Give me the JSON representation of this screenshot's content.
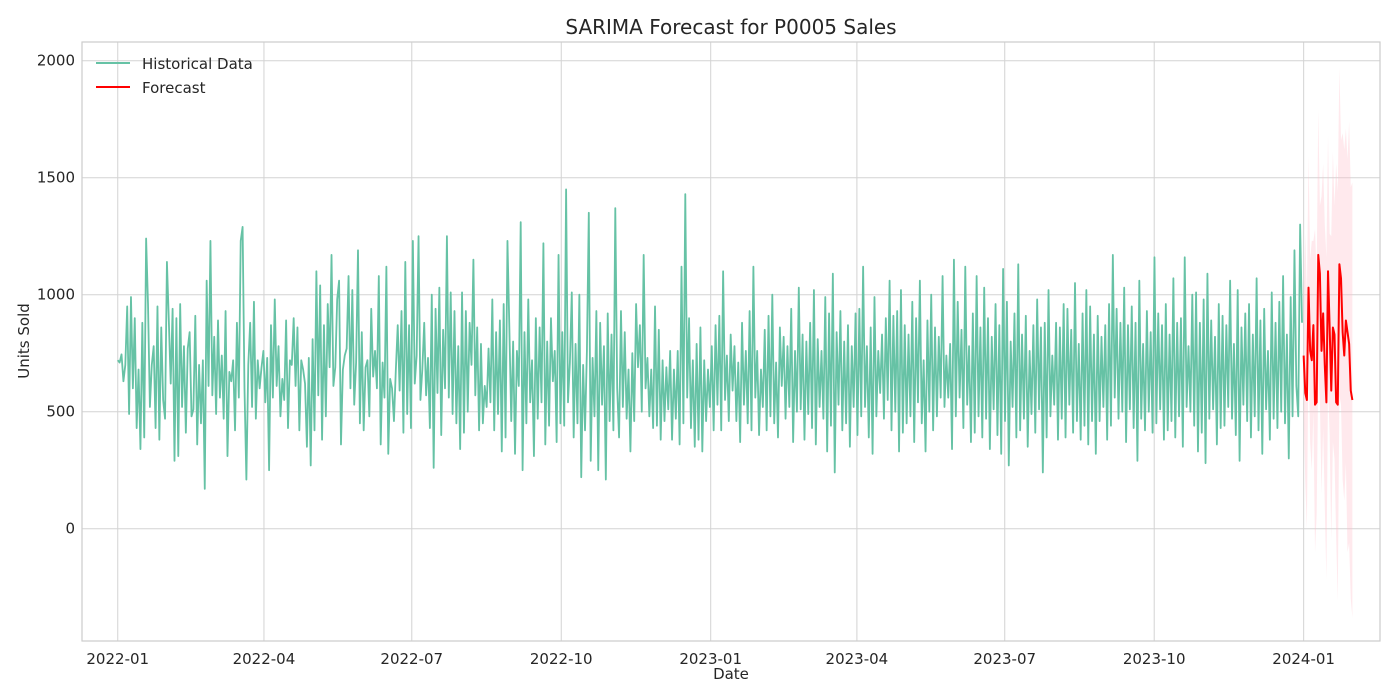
{
  "chart_data": {
    "type": "line",
    "title": "SARIMA Forecast for P0005 Sales",
    "xlabel": "Date",
    "ylabel": "Units Sold",
    "xlim": [
      "2021-12-10",
      "2024-02-17"
    ],
    "ylim": [
      -480,
      2080
    ],
    "x_ticks": [
      "2022-01",
      "2022-04",
      "2022-07",
      "2022-10",
      "2023-01",
      "2023-04",
      "2023-07",
      "2023-10",
      "2024-01"
    ],
    "y_ticks": [
      0,
      500,
      1000,
      1500,
      2000
    ],
    "grid": true,
    "legend": {
      "placement": "top-left",
      "entries": [
        "Historical Data",
        "Forecast"
      ]
    },
    "series": [
      {
        "name": "Historical Data",
        "color": "#66c2a5",
        "x_start": "2022-01-01",
        "x_end": "2023-12-31",
        "values": [
          720,
          710,
          745,
          630,
          700,
          950,
          490,
          990,
          600,
          900,
          430,
          680,
          340,
          880,
          390,
          1240,
          960,
          520,
          700,
          780,
          430,
          950,
          380,
          860,
          550,
          470,
          1140,
          890,
          620,
          940,
          290,
          900,
          310,
          960,
          520,
          780,
          410,
          770,
          840,
          480,
          510,
          910,
          360,
          700,
          450,
          720,
          170,
          1060,
          610,
          1230,
          570,
          820,
          490,
          890,
          560,
          740,
          470,
          930,
          310,
          670,
          630,
          720,
          420,
          880,
          560,
          1230,
          1290,
          600,
          210,
          700,
          880,
          520,
          970,
          470,
          720,
          600,
          690,
          760,
          540,
          730,
          250,
          870,
          560,
          980,
          610,
          780,
          480,
          640,
          550,
          890,
          430,
          720,
          700,
          900,
          610,
          860,
          420,
          720,
          680,
          620,
          350,
          730,
          270,
          810,
          420,
          1100,
          570,
          1040,
          380,
          870,
          480,
          960,
          690,
          1170,
          610,
          690,
          980,
          1060,
          360,
          680,
          740,
          770,
          1080,
          600,
          1020,
          530,
          710,
          1190,
          450,
          840,
          420,
          690,
          720,
          480,
          940,
          650,
          760,
          600,
          1080,
          360,
          710,
          560,
          1120,
          320,
          640,
          600,
          460,
          680,
          870,
          590,
          930,
          410,
          1140,
          490,
          870,
          430,
          1230,
          620,
          740,
          1250,
          550,
          680,
          880,
          570,
          730,
          430,
          1000,
          260,
          940,
          580,
          1030,
          400,
          850,
          600,
          1250,
          560,
          1010,
          490,
          930,
          450,
          780,
          340,
          1010,
          410,
          930,
          500,
          880,
          700,
          1150,
          570,
          860,
          420,
          790,
          450,
          610,
          520,
          770,
          540,
          980,
          420,
          840,
          490,
          890,
          330,
          960,
          390,
          1230,
          860,
          460,
          800,
          320,
          760,
          610,
          1310,
          250,
          840,
          450,
          980,
          540,
          720,
          310,
          900,
          470,
          860,
          540,
          1220,
          360,
          800,
          440,
          900,
          630,
          760,
          370,
          1170,
          450,
          840,
          440,
          1450,
          540,
          710,
          1010,
          390,
          790,
          450,
          1000,
          220,
          700,
          420,
          760,
          1350,
          290,
          730,
          480,
          930,
          250,
          880,
          530,
          780,
          210,
          920,
          460,
          830,
          420,
          1370,
          600,
          390,
          930,
          520,
          840,
          470,
          680,
          330,
          750,
          460,
          960,
          690,
          870,
          500,
          1170,
          600,
          730,
          480,
          680,
          430,
          950,
          440,
          850,
          380,
          720,
          460,
          690,
          510,
          760,
          380,
          680,
          470,
          760,
          360,
          1120,
          450,
          1430,
          560,
          900,
          430,
          720,
          350,
          790,
          380,
          860,
          330,
          720,
          460,
          680,
          520,
          780,
          420,
          870,
          530,
          910,
          420,
          1100,
          550,
          740,
          460,
          830,
          590,
          780,
          460,
          710,
          370,
          880,
          530,
          760,
          450,
          930,
          420,
          1120,
          560,
          760,
          400,
          680,
          520,
          850,
          420,
          910,
          480,
          1000,
          450,
          710,
          390,
          860,
          610,
          820,
          470,
          780,
          520,
          940,
          370,
          760,
          500,
          1030,
          510,
          830,
          380,
          800,
          490,
          880,
          430,
          1020,
          360,
          810,
          520,
          760,
          470,
          990,
          330,
          920,
          440,
          1090,
          240,
          840,
          530,
          930,
          420,
          800,
          450,
          870,
          350,
          780,
          520,
          920,
          400,
          940,
          480,
          1120,
          520,
          780,
          390,
          860,
          320,
          990,
          480,
          760,
          580,
          830,
          470,
          900,
          550,
          1060,
          420,
          910,
          500,
          930,
          330,
          1020,
          410,
          870,
          450,
          830,
          480,
          970,
          370,
          900,
          540,
          1060,
          450,
          720,
          330,
          890,
          500,
          1000,
          420,
          860,
          480,
          820,
          560,
          1080,
          520,
          740,
          560,
          790,
          340,
          1150,
          480,
          970,
          560,
          850,
          430,
          1120,
          530,
          780,
          370,
          920,
          410,
          1080,
          480,
          860,
          390,
          1030,
          470,
          900,
          340,
          820,
          510,
          960,
          400,
          870,
          320,
          1110,
          460,
          970,
          270,
          800,
          520,
          920,
          390,
          1130,
          420,
          830,
          470,
          910,
          350,
          760,
          490,
          870,
          410,
          980,
          510,
          860,
          240,
          880,
          390,
          1020,
          480,
          740,
          530,
          880,
          380,
          860,
          470,
          960,
          390,
          940,
          530,
          850,
          410,
          1050,
          460,
          790,
          380,
          920,
          440,
          1020,
          360,
          950,
          460,
          830,
          320,
          910,
          460,
          820,
          520,
          870,
          380,
          960,
          440,
          1170,
          560,
          940,
          470,
          880,
          500,
          1030,
          370,
          870,
          510,
          950,
          430,
          880,
          290,
          1060,
          470,
          790,
          420,
          930,
          500,
          840,
          410,
          1160,
          450,
          920,
          510,
          870,
          380,
          960,
          420,
          830,
          460,
          1070,
          390,
          880,
          480,
          900,
          350,
          1160,
          520,
          780,
          500,
          1000,
          440,
          1010,
          330,
          880,
          410,
          980,
          280,
          1090,
          470,
          890,
          510,
          820,
          360,
          960,
          430,
          910,
          440,
          870,
          520,
          1060,
          470,
          790,
          400,
          1020,
          290,
          860,
          530,
          920,
          460,
          960,
          390,
          830,
          480,
          1070,
          420,
          890,
          320,
          940,
          510,
          760,
          380,
          1010,
          470,
          880,
          430,
          970,
          500,
          1080,
          450,
          830,
          300,
          990,
          480,
          1190,
          610,
          480,
          1300,
          880
        ]
      },
      {
        "name": "Forecast",
        "color": "#ff0000",
        "x_start": "2024-01-01",
        "x_end": "2024-01-31",
        "values": [
          740,
          580,
          550,
          1030,
          760,
          720,
          870,
          530,
          540,
          1170,
          1090,
          760,
          920,
          700,
          540,
          1100,
          860,
          590,
          860,
          830,
          540,
          530,
          1130,
          1070,
          840,
          740,
          890,
          840,
          790,
          590,
          550
        ],
        "ci_lower": [
          480,
          200,
          0,
          780,
          370,
          250,
          500,
          -100,
          60,
          660,
          550,
          150,
          430,
          100,
          -220,
          610,
          400,
          -50,
          370,
          300,
          -30,
          -310,
          570,
          530,
          210,
          120,
          280,
          -100,
          -60,
          -300,
          -380
        ],
        "ci_upper": [
          1000,
          1260,
          1000,
          1590,
          1150,
          1230,
          1230,
          1280,
          1080,
          1790,
          1380,
          1420,
          1560,
          1300,
          1160,
          1680,
          1260,
          1250,
          1610,
          1380,
          1560,
          1440,
          1970,
          1660,
          1690,
          1620,
          1710,
          1580,
          1740,
          1460,
          1480
        ],
        "ci_color": "#ffc0cb"
      }
    ]
  }
}
